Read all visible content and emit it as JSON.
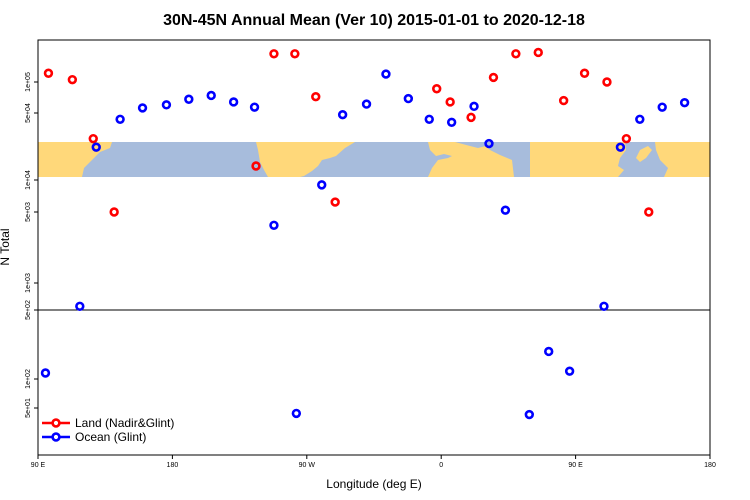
{
  "chart_data": {
    "type": "scatter",
    "title": "30N-45N Annual Mean (Ver 10)   2015-01-01 to 2020-12-18",
    "xlabel": "Longitude (deg E)",
    "ylabel": "N Total",
    "x_ticks": [
      "90 E",
      "180",
      "90 W",
      "0",
      "90 E",
      "180"
    ],
    "x_tick_values": [
      90,
      180,
      270,
      360,
      450,
      540
    ],
    "xlim": [
      90,
      540
    ],
    "y_scale": "log",
    "y_tick_labels": [
      "1e+05",
      "5e+04",
      "1e+04",
      "5e+03",
      "1e+03",
      "5e+02",
      "1e+02",
      "5e+01"
    ],
    "y_tick_values": [
      100000,
      50000,
      10000,
      5000,
      1000,
      500,
      100,
      50
    ],
    "ylim": [
      20,
      250000
    ],
    "grid": false,
    "legend_position": "bottom-left",
    "map_band": {
      "lat_range": "30N-45N",
      "land_color": "#ffd87a",
      "ocean_color": "#a7bcdc"
    },
    "series": [
      {
        "name": "Land (Nadir&Glint)",
        "color": "#ff0000",
        "points": [
          [
            97,
            120000
          ],
          [
            113,
            105000
          ],
          [
            127,
            27000
          ],
          [
            141,
            5000
          ],
          [
            236,
            14000
          ],
          [
            248,
            180000
          ],
          [
            262,
            180000
          ],
          [
            276,
            72000
          ],
          [
            289,
            6200
          ],
          [
            357,
            86000
          ],
          [
            366,
            64000
          ],
          [
            380,
            45000
          ],
          [
            395,
            110000
          ],
          [
            410,
            180000
          ],
          [
            425,
            185000
          ],
          [
            442,
            66000
          ],
          [
            456,
            120000
          ],
          [
            471,
            100000
          ],
          [
            484,
            27000
          ],
          [
            499,
            5000
          ]
        ]
      },
      {
        "name": "Ocean (Glint)",
        "color": "#0000ff",
        "points": [
          [
            95,
            115
          ],
          [
            118,
            550
          ],
          [
            129,
            22000
          ],
          [
            145,
            43000
          ],
          [
            160,
            56000
          ],
          [
            176,
            60000
          ],
          [
            191,
            68000
          ],
          [
            206,
            74000
          ],
          [
            221,
            64000
          ],
          [
            235,
            57000
          ],
          [
            248,
            3700
          ],
          [
            263,
            45
          ],
          [
            280,
            9000
          ],
          [
            294,
            48000
          ],
          [
            310,
            61000
          ],
          [
            323,
            118000
          ],
          [
            338,
            69000
          ],
          [
            352,
            43000
          ],
          [
            367,
            40000
          ],
          [
            382,
            58000
          ],
          [
            392,
            24000
          ],
          [
            403,
            5200
          ],
          [
            419,
            44
          ],
          [
            432,
            190
          ],
          [
            446,
            120
          ],
          [
            469,
            550
          ],
          [
            480,
            22000
          ],
          [
            493,
            43000
          ],
          [
            508,
            57000
          ],
          [
            523,
            63000
          ]
        ]
      }
    ]
  }
}
